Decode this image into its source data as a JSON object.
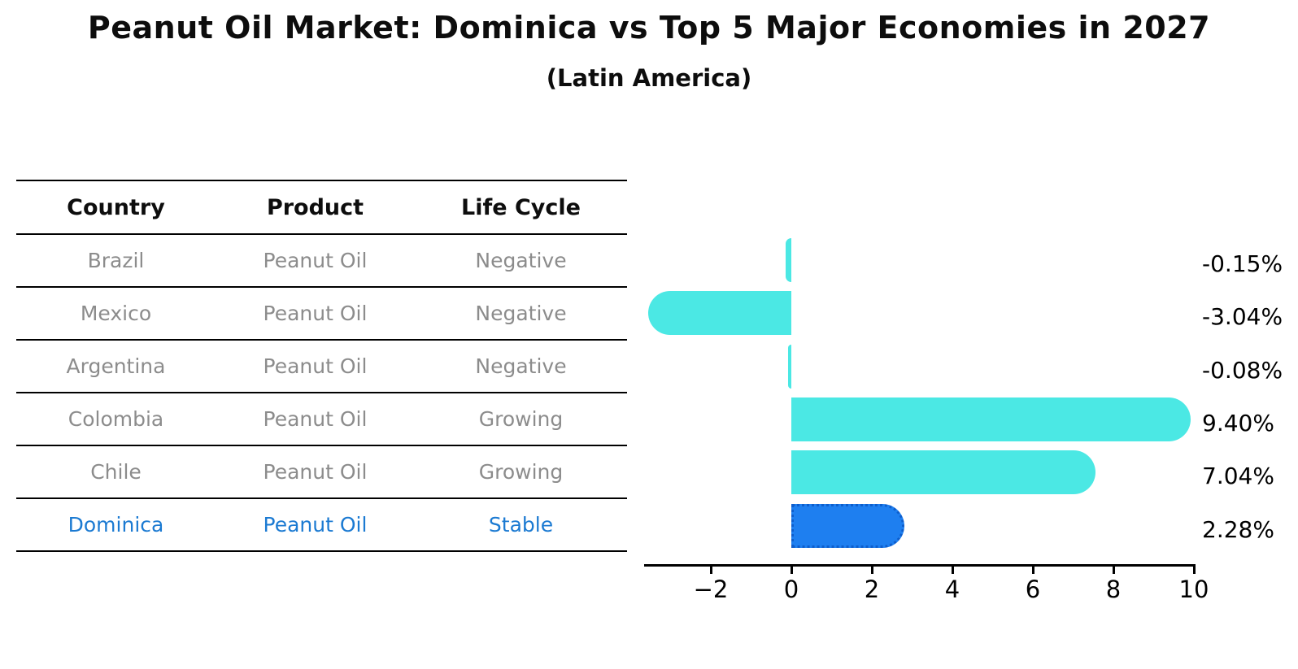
{
  "title": "Peanut Oil Market: Dominica vs Top 5 Major Economies in 2027",
  "subtitle": "(Latin America)",
  "table": {
    "headers": [
      "Country",
      "Product",
      "Life Cycle"
    ],
    "rows": [
      {
        "country": "Brazil",
        "product": "Peanut Oil",
        "life_cycle": "Negative",
        "highlight": false
      },
      {
        "country": "Mexico",
        "product": "Peanut Oil",
        "life_cycle": "Negative",
        "highlight": false
      },
      {
        "country": "Argentina",
        "product": "Peanut Oil",
        "life_cycle": "Negative",
        "highlight": false
      },
      {
        "country": "Colombia",
        "product": "Peanut Oil",
        "life_cycle": "Growing",
        "highlight": false
      },
      {
        "country": "Chile",
        "product": "Peanut Oil",
        "life_cycle": "Growing",
        "highlight": false
      },
      {
        "country": "Dominica",
        "product": "Peanut Oil",
        "life_cycle": "Stable",
        "highlight": true
      }
    ]
  },
  "chart_data": {
    "type": "bar",
    "orientation": "horizontal",
    "title": "Peanut Oil Market: Dominica vs Top 5 Major Economies in 2027 (Latin America)",
    "categories": [
      "Brazil",
      "Mexico",
      "Argentina",
      "Colombia",
      "Chile",
      "Dominica"
    ],
    "values": [
      -0.15,
      -3.04,
      -0.08,
      9.4,
      7.04,
      2.28
    ],
    "value_labels": [
      "-0.15%",
      "-3.04%",
      "-0.08%",
      "9.40%",
      "7.04%",
      "2.28%"
    ],
    "unit": "percent",
    "xlim": [
      -3.7,
      10
    ],
    "xticks": [
      -2,
      0,
      2,
      4,
      6,
      8,
      10
    ],
    "xtick_labels": [
      "−2",
      "0",
      "2",
      "4",
      "6",
      "8",
      "10"
    ],
    "grid": false,
    "legend": null,
    "bar_color": "#4be8e4",
    "highlight_color": "#1e7ff0",
    "highlight_index": 5,
    "highlight_border_color": "#0e5ecc"
  },
  "colors": {
    "bar_cyan": "#4be8e4",
    "bar_blue": "#1e7ff0",
    "highlight_text": "#1b7ad2",
    "table_text_gray": "#8c8c8c",
    "text_black": "#0d0d0d"
  }
}
